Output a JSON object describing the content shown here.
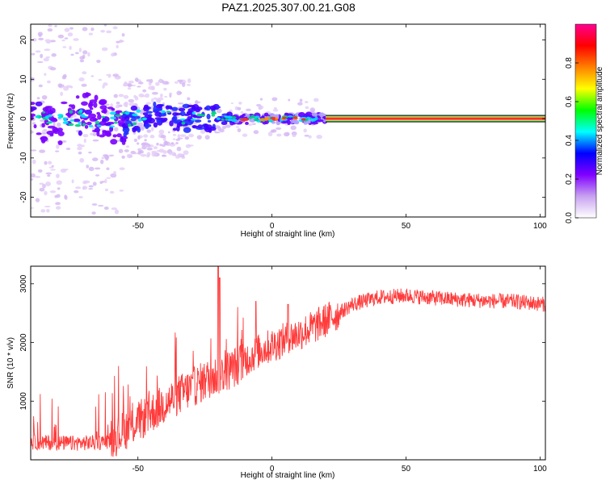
{
  "title": "PAZ1.2025.307.00.21.G08",
  "chart_data": [
    {
      "type": "heatmap",
      "name": "spectrogram",
      "xlabel": "Height of straight line (km)",
      "ylabel": "Frequency (Hz)",
      "xlim": [
        -90,
        102
      ],
      "ylim": [
        -25,
        24
      ],
      "xticks": [
        -50,
        0,
        50,
        100
      ],
      "yticks": [
        -20,
        -10,
        0,
        10,
        20
      ],
      "line_frequency_hz": 0,
      "line_start_km": -90,
      "scattered_noise_extent_km": [
        -90,
        20
      ],
      "colorbar": {
        "label": "Normalized spectral amplitude",
        "range": [
          0.0,
          1.0
        ],
        "ticks": [
          0.0,
          0.2,
          0.4,
          0.6,
          0.8
        ],
        "colors": [
          "#ffffff",
          "#c8a2f0",
          "#8000ff",
          "#0000ff",
          "#00ffff",
          "#00ff00",
          "#ffff00",
          "#ff8000",
          "#ff0000",
          "#ff0090"
        ]
      }
    },
    {
      "type": "line",
      "name": "snr",
      "xlabel": "Height of straight line (km)",
      "ylabel": "SNR (10 * v/v)",
      "xlim": [
        -90,
        102
      ],
      "ylim": [
        0,
        3300
      ],
      "xticks": [
        -50,
        0,
        50,
        100
      ],
      "yticks": [
        1000,
        2000,
        3000
      ],
      "color": "#ff3b3b",
      "trend": {
        "x": [
          -90,
          -75,
          -62,
          -55,
          -45,
          -35,
          -25,
          -15,
          -5,
          5,
          15,
          25,
          30,
          40,
          50,
          60,
          70,
          80,
          90,
          102
        ],
        "y": [
          300,
          280,
          300,
          500,
          800,
          1100,
          1350,
          1550,
          1850,
          2050,
          2250,
          2500,
          2650,
          2770,
          2800,
          2760,
          2730,
          2710,
          2700,
          2650
        ]
      },
      "spikes": [
        {
          "x": -20,
          "y": 3300
        },
        {
          "x": -19.5,
          "y": 3100
        },
        {
          "x": -6,
          "y": 2700
        },
        {
          "x": 6,
          "y": 2650
        }
      ]
    }
  ]
}
